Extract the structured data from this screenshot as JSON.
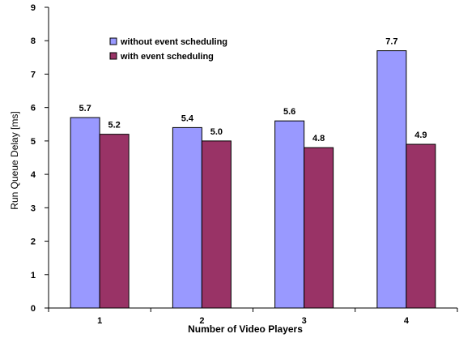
{
  "chart_data": {
    "type": "bar",
    "title": "",
    "xlabel": "Number of Video Players",
    "ylabel": "Run Queue Delay [ms]",
    "ylim": [
      0,
      9
    ],
    "yticks": [
      "0",
      "1",
      "2",
      "3",
      "4",
      "5",
      "6",
      "7",
      "8",
      "9"
    ],
    "categories": [
      "1",
      "2",
      "3",
      "4"
    ],
    "series": [
      {
        "name": "without event scheduling",
        "values": [
          5.7,
          5.4,
          5.6,
          7.7
        ],
        "labels": [
          "5.7",
          "5.4",
          "5.6",
          "7.7"
        ],
        "color": "#9999ff"
      },
      {
        "name": "with event scheduling",
        "values": [
          5.2,
          5.0,
          4.8,
          4.9
        ],
        "labels": [
          "5.2",
          "5.0",
          "4.8",
          "4.9"
        ],
        "color": "#993366"
      }
    ],
    "grid": false,
    "legend_position": "top-left"
  }
}
